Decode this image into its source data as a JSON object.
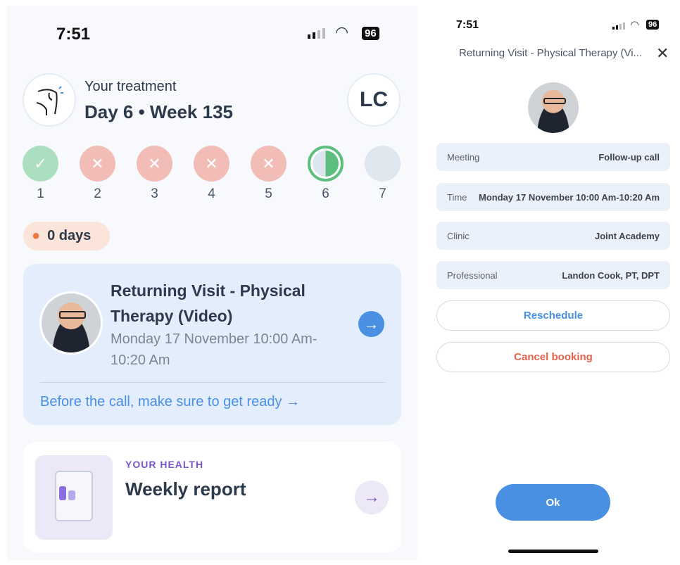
{
  "left": {
    "status": {
      "time": "7:51",
      "battery": "96"
    },
    "treatment": {
      "label": "Your treatment",
      "progress": "Day 6 • Week 135",
      "avatar_initials": "LC"
    },
    "days": [
      {
        "num": "1",
        "state": "done"
      },
      {
        "num": "2",
        "state": "missed"
      },
      {
        "num": "3",
        "state": "missed"
      },
      {
        "num": "4",
        "state": "missed"
      },
      {
        "num": "5",
        "state": "missed"
      },
      {
        "num": "6",
        "state": "current"
      },
      {
        "num": "7",
        "state": "upcoming"
      }
    ],
    "streak": "0 days",
    "appointment": {
      "title": "Returning Visit - Physical Therapy (Video)",
      "time": "Monday 17 November 10:00 Am-10:20 Am",
      "link": "Before the call, make sure to get ready"
    },
    "health": {
      "eyebrow": "YOUR HEALTH",
      "title": "Weekly report"
    }
  },
  "right": {
    "status": {
      "time": "7:51",
      "battery": "96"
    },
    "title": "Returning Visit - Physical Therapy (Vi...",
    "rows": [
      {
        "label": "Meeting",
        "value": "Follow-up call"
      },
      {
        "label": "Time",
        "value": "Monday 17 November 10:00 Am-10:20 Am"
      },
      {
        "label": "Clinic",
        "value": "Joint Academy"
      },
      {
        "label": "Professional",
        "value": "Landon Cook, PT, DPT"
      }
    ],
    "reschedule": "Reschedule",
    "cancel": "Cancel booking",
    "ok": "Ok"
  },
  "colors": {
    "blue": "#4a90e2",
    "green": "#5cbf7f",
    "red": "#e2624b",
    "purple": "#7a55c8"
  }
}
